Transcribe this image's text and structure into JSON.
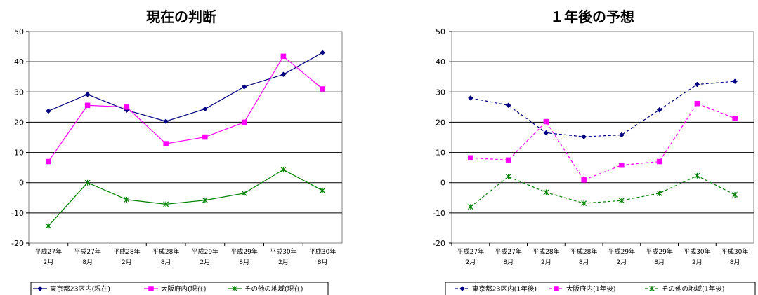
{
  "chart_data": [
    {
      "type": "line",
      "title": "現在の判断",
      "categories": [
        [
          "平成27年",
          "2月"
        ],
        [
          "平成27年",
          "8月"
        ],
        [
          "平成28年",
          "2月"
        ],
        [
          "平成28年",
          "8月"
        ],
        [
          "平成29年",
          "2月"
        ],
        [
          "平成29年",
          "8月"
        ],
        [
          "平成30年",
          "2月"
        ],
        [
          "平成30年",
          "8月"
        ]
      ],
      "ylim": [
        -20,
        50
      ],
      "yticks": [
        -20,
        -10,
        0,
        10,
        20,
        30,
        40,
        50
      ],
      "grid": true,
      "legend_position": "bottom",
      "series": [
        {
          "name": "東京都23区内(現在)",
          "color": "#000080",
          "marker": "diamond",
          "dash": "solid",
          "values": [
            23.7,
            29.2,
            24.0,
            20.3,
            24.4,
            31.7,
            35.8,
            43.0
          ]
        },
        {
          "name": "大阪府内(現在)",
          "color": "#FF00FF",
          "marker": "square",
          "dash": "solid",
          "values": [
            7.0,
            25.6,
            25.0,
            12.9,
            15.1,
            20.0,
            41.8,
            31.0
          ]
        },
        {
          "name": "その他の地域(現在)",
          "color": "#008000",
          "marker": "star",
          "dash": "solid",
          "values": [
            -14.3,
            0.0,
            -5.6,
            -7.1,
            -5.8,
            -3.5,
            4.3,
            -2.6
          ]
        }
      ]
    },
    {
      "type": "line",
      "title": "１年後の予想",
      "categories": [
        [
          "平成27年",
          "2月"
        ],
        [
          "平成27年",
          "8月"
        ],
        [
          "平成28年",
          "2月"
        ],
        [
          "平成28年",
          "8月"
        ],
        [
          "平成29年",
          "2月"
        ],
        [
          "平成29年",
          "8月"
        ],
        [
          "平成30年",
          "2月"
        ],
        [
          "平成30年",
          "8月"
        ]
      ],
      "ylim": [
        -20,
        50
      ],
      "yticks": [
        -20,
        -10,
        0,
        10,
        20,
        30,
        40,
        50
      ],
      "grid": true,
      "legend_position": "bottom",
      "series": [
        {
          "name": "東京都23区内(1年後)",
          "color": "#000080",
          "marker": "diamond",
          "dash": "dashed",
          "values": [
            28.0,
            25.6,
            16.5,
            15.2,
            15.8,
            24.1,
            32.5,
            33.5
          ]
        },
        {
          "name": "大阪府内(1年後)",
          "color": "#FF00FF",
          "marker": "square",
          "dash": "dashed",
          "values": [
            8.2,
            7.5,
            20.2,
            0.9,
            5.8,
            7.0,
            26.2,
            21.3
          ]
        },
        {
          "name": "その他の地域(1年後)",
          "color": "#008000",
          "marker": "star",
          "dash": "dashed",
          "values": [
            -8.0,
            2.0,
            -3.2,
            -6.8,
            -5.9,
            -3.5,
            2.3,
            -4.0
          ]
        }
      ]
    }
  ]
}
